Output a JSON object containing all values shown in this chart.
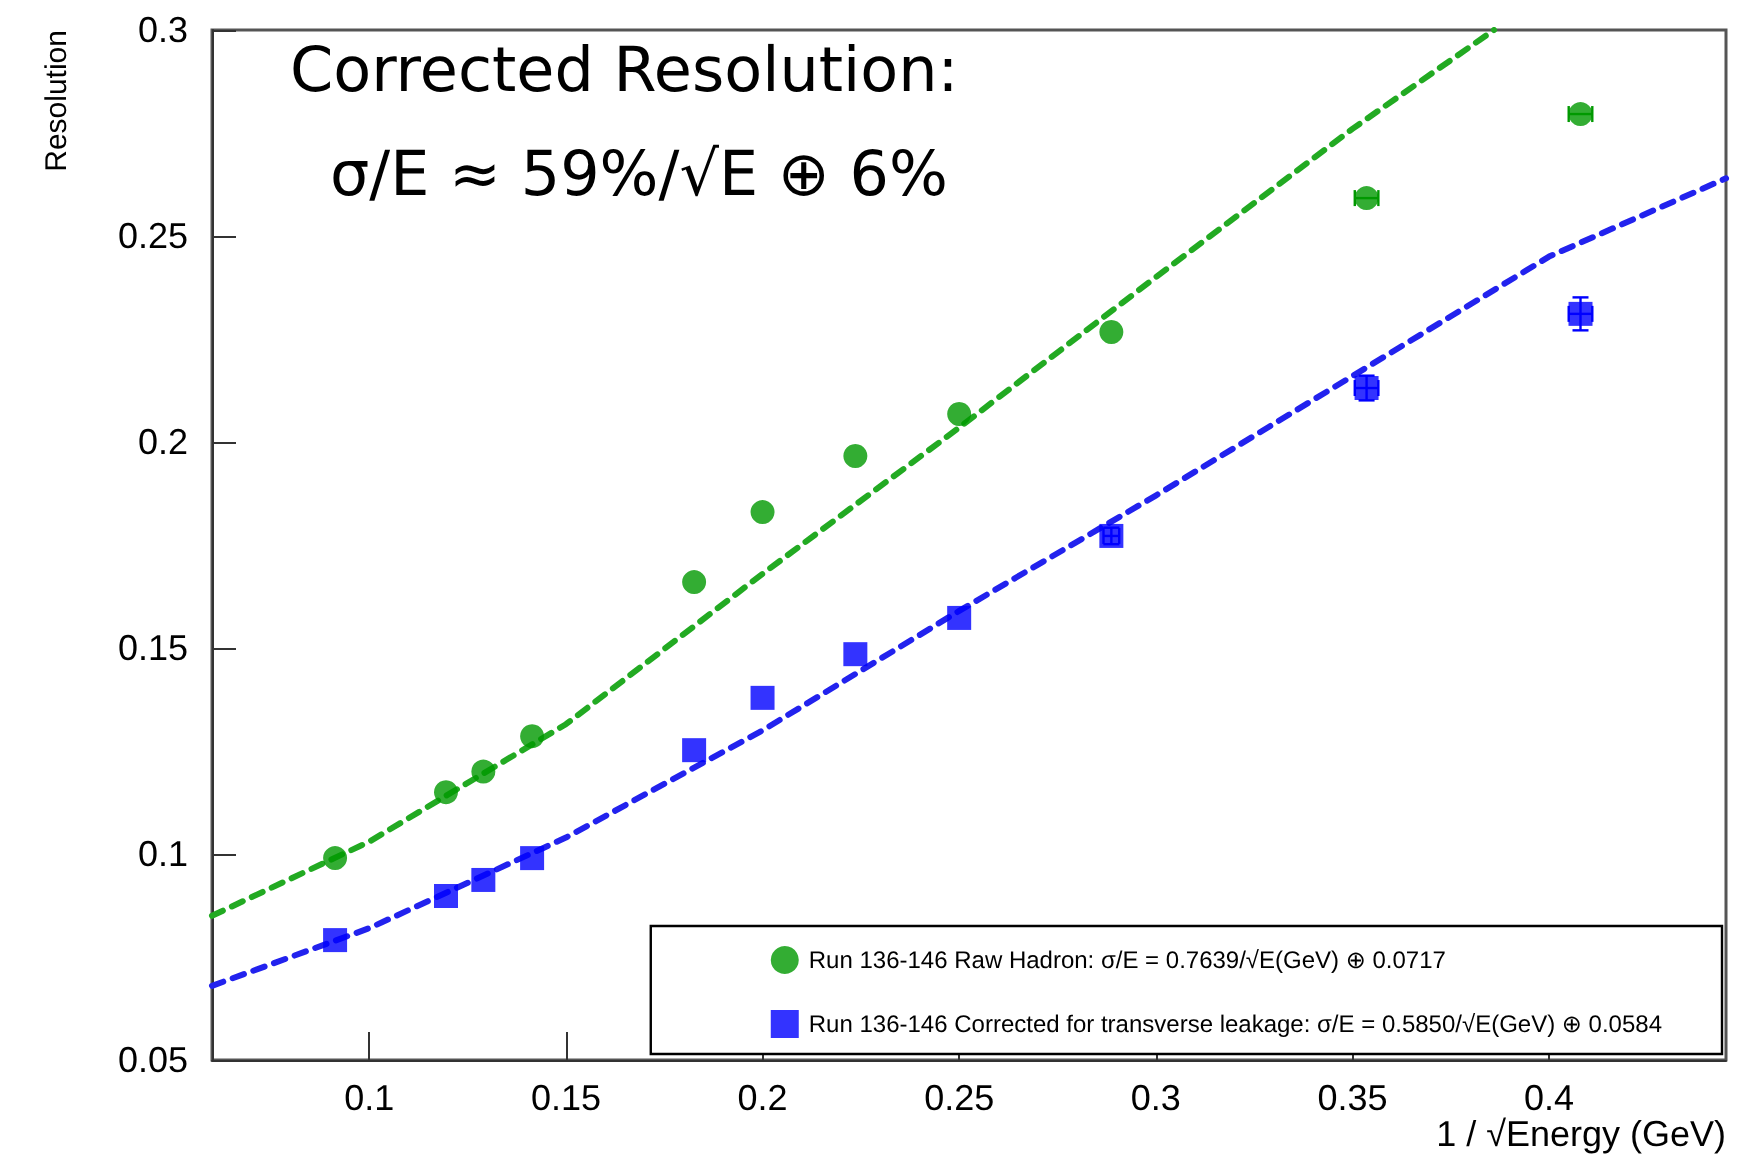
{
  "chart_data": {
    "type": "scatter",
    "xlabel": "1 / √Energy (GeV)",
    "ylabel": "Resolution",
    "annotations": [
      "Corrected Resolution:",
      "σ/E ≈ 59%/√E ⊕ 6%"
    ],
    "xlim": [
      0.06,
      0.445
    ],
    "ylim": [
      0.05,
      0.3
    ],
    "xticks": [
      0.1,
      0.15,
      0.2,
      0.25,
      0.3,
      0.35,
      0.4
    ],
    "yticks": [
      0.05,
      0.1,
      0.15,
      0.2,
      0.25,
      0.3
    ],
    "grid": false,
    "legend": "bottom right",
    "series": [
      {
        "name": "Run 136-146 Raw Hadron: σ/E = 0.7639/√E(GeV) ⊕ 0.0717",
        "color": "#009900",
        "marker": "circle",
        "x": [
          0.0913,
          0.1195,
          0.129,
          0.1414,
          0.1826,
          0.2,
          0.2236,
          0.25,
          0.2887,
          0.3536,
          0.408
        ],
        "values": [
          0.099,
          0.115,
          0.12,
          0.1286,
          0.166,
          0.183,
          0.1966,
          0.2068,
          0.2267,
          0.2592,
          0.2796
        ],
        "xerrors": [
          null,
          null,
          null,
          null,
          null,
          null,
          null,
          null,
          null,
          0.003,
          0.003
        ]
      },
      {
        "name": "Run 136-146 Corrected for transverse leakage: σ/E = 0.5850/√E(GeV) ⊕ 0.0584",
        "color": "#0000ff",
        "marker": "square",
        "x": [
          0.0913,
          0.1195,
          0.129,
          0.1414,
          0.1826,
          0.2,
          0.2236,
          0.25,
          0.2887,
          0.3536,
          0.408
        ],
        "values": [
          0.0791,
          0.0898,
          0.0937,
          0.099,
          0.1252,
          0.1379,
          0.1485,
          0.1573,
          0.1772,
          0.2131,
          0.2311
        ],
        "errors": [
          null,
          null,
          null,
          null,
          null,
          null,
          null,
          null,
          0.002,
          0.003,
          0.004
        ],
        "xerrors": [
          null,
          null,
          null,
          null,
          null,
          null,
          null,
          null,
          0.002,
          0.003,
          0.003
        ]
      },
      {
        "type": "line",
        "color": "#22aa22",
        "marker": "none",
        "line_style": "dashed",
        "x": [
          0.06,
          0.1,
          0.15,
          0.2,
          0.25,
          0.3,
          0.35,
          0.386
        ],
        "values": [
          0.085,
          0.103,
          0.1315,
          0.168,
          0.2035,
          0.24,
          0.276,
          0.3
        ]
      },
      {
        "type": "line",
        "color": "#2222ee",
        "marker": "none",
        "line_style": "dashed",
        "x": [
          0.06,
          0.1,
          0.15,
          0.2,
          0.25,
          0.3,
          0.35,
          0.4,
          0.445
        ],
        "values": [
          0.068,
          0.082,
          0.104,
          0.13,
          0.159,
          0.187,
          0.216,
          0.245,
          0.264
        ]
      }
    ]
  }
}
